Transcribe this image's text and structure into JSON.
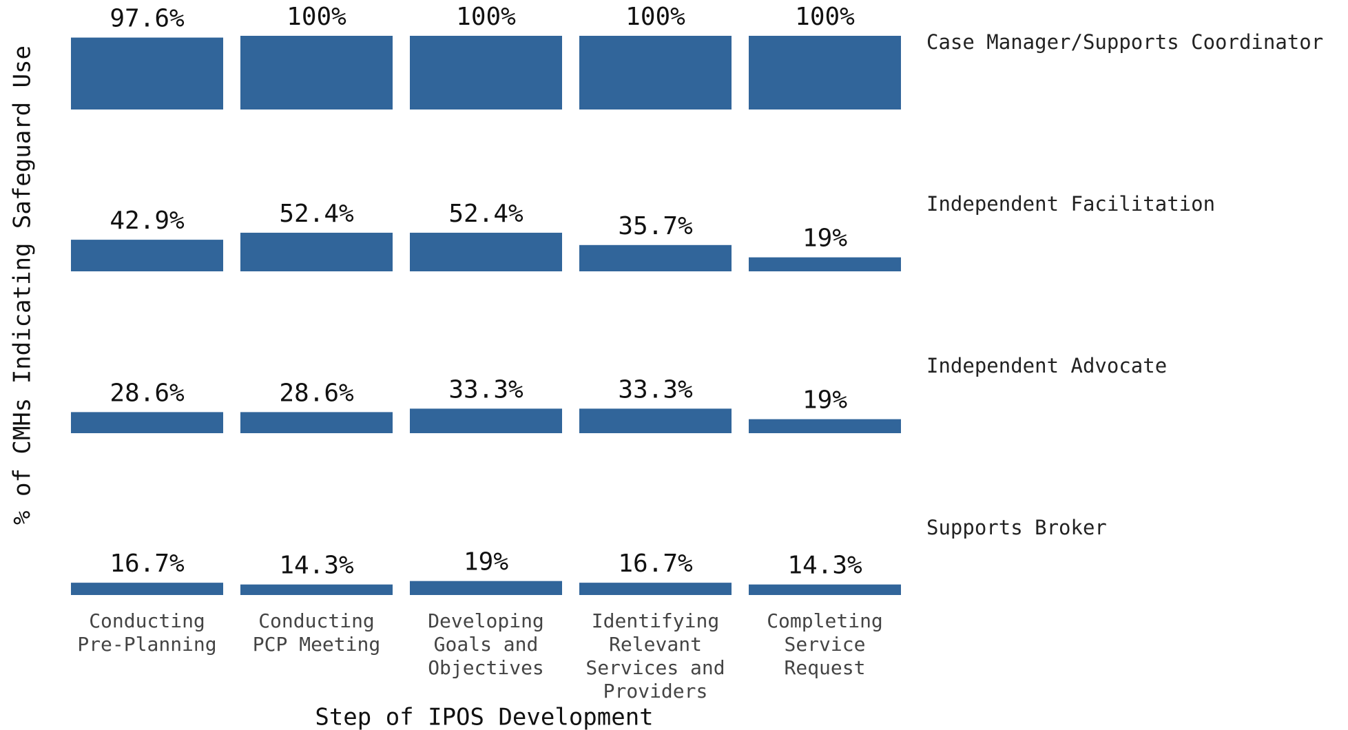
{
  "chart_data": {
    "type": "bar",
    "x_label": "Step of IPOS Development",
    "y_label": "% of CMHs Indicating Safeguard Use",
    "categories": [
      [
        "Conducting",
        "Pre-Planning"
      ],
      [
        "Conducting",
        "PCP Meeting"
      ],
      [
        "Developing",
        "Goals and",
        "Objectives"
      ],
      [
        "Identifying",
        "Relevant",
        "Services and",
        "Providers"
      ],
      [
        "Completing",
        "Service",
        "Request"
      ]
    ],
    "series": [
      {
        "name": "Case Manager/Supports Coordinator",
        "color": "#31659a",
        "values": [
          97.6,
          100,
          100,
          100,
          100
        ],
        "value_labels": [
          "97.6%",
          "100%",
          "100%",
          "100%",
          "100%"
        ]
      },
      {
        "name": "Independent Facilitation",
        "color": "#31659a",
        "values": [
          42.9,
          52.4,
          52.4,
          35.7,
          19
        ],
        "value_labels": [
          "42.9%",
          "52.4%",
          "52.4%",
          "35.7%",
          "19%"
        ]
      },
      {
        "name": "Independent Advocate",
        "color": "#31659a",
        "values": [
          28.6,
          28.6,
          33.3,
          33.3,
          19
        ],
        "value_labels": [
          "28.6%",
          "28.6%",
          "33.3%",
          "33.3%",
          "19%"
        ]
      },
      {
        "name": "Supports Broker",
        "color": "#31659a",
        "values": [
          16.7,
          14.3,
          19,
          16.7,
          14.3
        ],
        "value_labels": [
          "16.7%",
          "14.3%",
          "19%",
          "16.7%",
          "14.3%"
        ]
      }
    ]
  }
}
